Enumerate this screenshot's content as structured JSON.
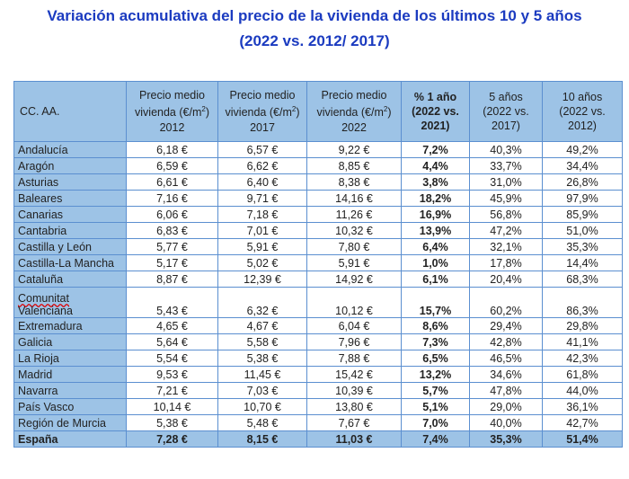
{
  "title_line1": "Variación acumulativa del precio de la vivienda de los últimos 10 y 5 años",
  "title_line2": "(2022 vs. 2012/ 2017)",
  "headers": [
    "CC. AA.",
    "Precio medio vivienda (€/m²) 2012",
    "Precio medio vivienda (€/m²) 2017",
    "Precio medio vivienda (€/m²) 2022",
    "% 1 año (2022 vs. 2021)",
    "5 años (2022 vs. 2017)",
    "10 años (2022 vs. 2012)"
  ],
  "rows": [
    [
      "Andalucía",
      "6,18 €",
      "6,57 €",
      "9,22 €",
      "7,2%",
      "40,3%",
      "49,2%"
    ],
    [
      "Aragón",
      "6,59 €",
      "6,62 €",
      "8,85 €",
      "4,4%",
      "33,7%",
      "34,4%"
    ],
    [
      "Asturias",
      "6,61 €",
      "6,40 €",
      "8,38 €",
      "3,8%",
      "31,0%",
      "26,8%"
    ],
    [
      "Baleares",
      "7,16 €",
      "9,71 €",
      "14,16 €",
      "18,2%",
      "45,9%",
      "97,9%"
    ],
    [
      "Canarias",
      "6,06 €",
      "7,18 €",
      "11,26 €",
      "16,9%",
      "56,8%",
      "85,9%"
    ],
    [
      "Cantabria",
      "6,83 €",
      "7,01 €",
      "10,32 €",
      "13,9%",
      "47,2%",
      "51,0%"
    ],
    [
      "Castilla y León",
      "5,77 €",
      "5,91 €",
      "7,80 €",
      "6,4%",
      "32,1%",
      "35,3%"
    ],
    [
      "Castilla-La Mancha",
      "5,17 €",
      "5,02 €",
      "5,91 €",
      "1,0%",
      "17,8%",
      "14,4%"
    ],
    [
      "Cataluña",
      "8,87 €",
      "12,39 €",
      "14,92 €",
      "6,1%",
      "20,4%",
      "68,3%"
    ],
    [
      "Comunitat Valenciana",
      "5,43 €",
      "6,32 €",
      "10,12 €",
      "15,7%",
      "60,2%",
      "86,3%"
    ],
    [
      "Extremadura",
      "4,65 €",
      "4,67 €",
      "6,04 €",
      "8,6%",
      "29,4%",
      "29,8%"
    ],
    [
      "Galicia",
      "5,64 €",
      "5,58 €",
      "7,96 €",
      "7,3%",
      "42,8%",
      "41,1%"
    ],
    [
      "La Rioja",
      "5,54 €",
      "5,38 €",
      "7,88 €",
      "6,5%",
      "46,5%",
      "42,3%"
    ],
    [
      "Madrid",
      "9,53 €",
      "11,45 €",
      "15,42 €",
      "13,2%",
      "34,6%",
      "61,8%"
    ],
    [
      "Navarra",
      "7,21 €",
      "7,03 €",
      "10,39 €",
      "5,7%",
      "47,8%",
      "44,0%"
    ],
    [
      "País Vasco",
      "10,14 €",
      "10,70 €",
      "13,80 €",
      "5,1%",
      "29,0%",
      "36,1%"
    ],
    [
      "Región de Murcia",
      "5,38 €",
      "5,48 €",
      "7,67 €",
      "7,0%",
      "40,0%",
      "42,7%"
    ]
  ],
  "total": [
    "España",
    "7,28 €",
    "8,15 €",
    "11,03 €",
    "7,4%",
    "35,3%",
    "51,4%"
  ],
  "colors": {
    "title": "#1b3bc0",
    "header_bg": "#9dc3e6",
    "border": "#5b8fd0"
  }
}
